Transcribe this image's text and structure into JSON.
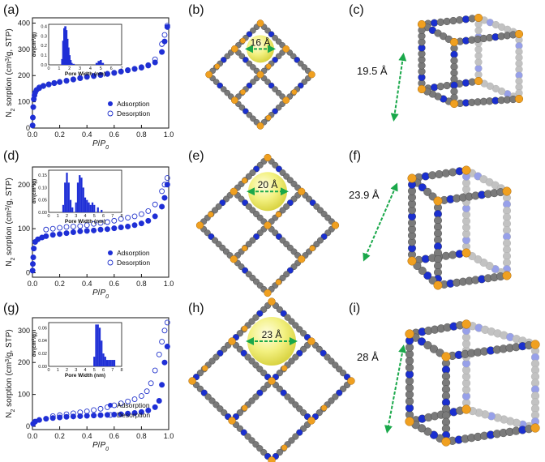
{
  "figure": {
    "panels": [
      {
        "letter": "(a)",
        "ylabel": "N2 sorption (cm3/g, STP)",
        "xlabel": "P/P0",
        "legend": [
          "Adsorption",
          "Desorption"
        ],
        "yticks": [
          "0",
          "100",
          "200",
          "300",
          "400"
        ],
        "xticks": [
          "0.0",
          "0.2",
          "0.4",
          "0.6",
          "0.8",
          "1.0"
        ],
        "inset": {
          "ylabel": "dV(cm3/g)",
          "xlabel": "Pore Width (nm)",
          "yticks": [
            "0.0",
            "0.1",
            "0.2",
            "0.3",
            "0.4"
          ],
          "xticks": [
            "0",
            "1",
            "2",
            "3",
            "4",
            "5",
            "6",
            "7"
          ]
        }
      },
      {
        "letter": "(b)",
        "pore": "16 Å"
      },
      {
        "letter": "(c)",
        "cage": "19.5 Å"
      },
      {
        "letter": "(d)",
        "ylabel": "N2 sorption (cm3/g, STP)",
        "xlabel": "P/P0",
        "legend": [
          "Adsorption",
          "Desorption"
        ],
        "yticks": [
          "0",
          "100",
          "200"
        ],
        "xticks": [
          "0.0",
          "0.2",
          "0.4",
          "0.6",
          "0.8",
          "1.0"
        ],
        "inset": {
          "ylabel": "dV(cm3/g)",
          "xlabel": "Pore Width (nm)",
          "yticks": [
            "0.00",
            "0.05",
            "0.10",
            "0.15"
          ],
          "xticks": [
            "0",
            "1",
            "2",
            "3",
            "4",
            "5",
            "6",
            "7",
            "8"
          ]
        }
      },
      {
        "letter": "(e)",
        "pore": "20 Å"
      },
      {
        "letter": "(f)",
        "cage": "23.9 Å"
      },
      {
        "letter": "(g)",
        "ylabel": "N2 sorption (cm3/g, STP)",
        "xlabel": "P/P0",
        "legend": [
          "Adsorption",
          "Desorption"
        ],
        "yticks": [
          "0",
          "100",
          "200",
          "300"
        ],
        "xticks": [
          "0.0",
          "0.2",
          "0.4",
          "0.6",
          "0.8",
          "1.0"
        ],
        "inset": {
          "ylabel": "dV(cm3/g)",
          "xlabel": "Pore Width (nm)",
          "yticks": [
            "0.00",
            "0.02",
            "0.04",
            "0.06"
          ],
          "xticks": [
            "0",
            "1",
            "2",
            "3",
            "4",
            "5",
            "6",
            "7",
            "8"
          ]
        }
      },
      {
        "letter": "(h)",
        "pore": "23 Å"
      },
      {
        "letter": "(i)",
        "cage": "28 Å"
      }
    ],
    "colors": {
      "adsorption": "#1f2fd6",
      "desorption": "#2233cc",
      "carbon": "#7a7a7a",
      "nitrogen": "#1a2fd0",
      "metal": "#f0a020",
      "pore_sphere": "#f2f07a",
      "arrow": "#1aa84a"
    }
  },
  "chart_data": [
    {
      "type": "scatter",
      "panel": "(a)",
      "xlabel": "P/P0",
      "ylabel": "N2 sorption (cm3/g, STP)",
      "xlim": [
        0,
        1.0
      ],
      "ylim": [
        0,
        420
      ],
      "series": [
        {
          "name": "Adsorption",
          "x": [
            0.001,
            0.003,
            0.006,
            0.01,
            0.015,
            0.02,
            0.03,
            0.05,
            0.08,
            0.12,
            0.16,
            0.2,
            0.25,
            0.3,
            0.35,
            0.4,
            0.45,
            0.5,
            0.55,
            0.6,
            0.65,
            0.7,
            0.75,
            0.8,
            0.85,
            0.9,
            0.95,
            0.97,
            0.99
          ],
          "y": [
            10,
            40,
            80,
            110,
            125,
            135,
            145,
            152,
            160,
            166,
            171,
            175,
            180,
            185,
            190,
            195,
            198,
            202,
            206,
            210,
            215,
            220,
            225,
            230,
            238,
            250,
            290,
            330,
            385
          ]
        },
        {
          "name": "Desorption",
          "x": [
            0.99,
            0.97,
            0.95,
            0.9,
            0.85,
            0.8,
            0.75,
            0.7,
            0.65,
            0.6,
            0.55,
            0.5,
            0.45,
            0.4,
            0.35,
            0.3,
            0.25,
            0.2,
            0.16,
            0.12,
            0.08,
            0.05
          ],
          "y": [
            390,
            355,
            320,
            262,
            240,
            232,
            226,
            221,
            216,
            211,
            207,
            203,
            199,
            196,
            191,
            186,
            181,
            176,
            172,
            167,
            161,
            155
          ]
        }
      ],
      "inset": {
        "type": "bar",
        "xlabel": "Pore Width (nm)",
        "ylabel": "dV(cm3/g)",
        "xlim": [
          0,
          7
        ],
        "ylim": [
          0,
          0.42
        ],
        "x": [
          1.3,
          1.4,
          1.5,
          1.6,
          1.7,
          1.8,
          1.9,
          2.0,
          2.1,
          2.2,
          2.4,
          4.6,
          4.8,
          5.0,
          5.2
        ],
        "values": [
          0.06,
          0.25,
          0.38,
          0.4,
          0.36,
          0.27,
          0.18,
          0.1,
          0.05,
          0.02,
          0.01,
          0.02,
          0.04,
          0.05,
          0.02
        ]
      }
    },
    {
      "type": "scatter",
      "panel": "(d)",
      "xlabel": "P/P0",
      "ylabel": "N2 sorption (cm3/g, STP)",
      "xlim": [
        0,
        1.0
      ],
      "ylim": [
        -10,
        240
      ],
      "series": [
        {
          "name": "Adsorption",
          "x": [
            0.001,
            0.003,
            0.006,
            0.01,
            0.02,
            0.04,
            0.07,
            0.1,
            0.15,
            0.2,
            0.25,
            0.3,
            0.35,
            0.4,
            0.45,
            0.5,
            0.55,
            0.6,
            0.65,
            0.7,
            0.75,
            0.8,
            0.85,
            0.9,
            0.95,
            0.97,
            0.99
          ],
          "y": [
            5,
            20,
            35,
            55,
            70,
            76,
            80,
            83,
            86,
            88,
            90,
            92,
            94,
            95,
            96,
            98,
            99,
            101,
            103,
            105,
            108,
            112,
            118,
            128,
            150,
            170,
            200
          ]
        },
        {
          "name": "Desorption",
          "x": [
            0.99,
            0.97,
            0.95,
            0.9,
            0.85,
            0.8,
            0.75,
            0.7,
            0.65,
            0.6,
            0.55,
            0.5,
            0.45,
            0.4,
            0.35,
            0.3,
            0.25,
            0.2,
            0.15,
            0.1
          ],
          "y": [
            215,
            200,
            185,
            155,
            140,
            133,
            128,
            125,
            122,
            118,
            115,
            113,
            111,
            108,
            106,
            105,
            104,
            102,
            100,
            98
          ]
        }
      ],
      "inset": {
        "type": "bar",
        "xlabel": "Pore Width (nm)",
        "ylabel": "dV(cm3/g)",
        "xlim": [
          0,
          8
        ],
        "ylim": [
          0,
          0.17
        ],
        "x": [
          1.6,
          1.8,
          2.0,
          2.2,
          2.4,
          2.6,
          3.0,
          3.2,
          3.4,
          3.6,
          3.8,
          4.0,
          4.2,
          4.4,
          4.6,
          4.8,
          5.0,
          5.4,
          5.8
        ],
        "values": [
          0.03,
          0.12,
          0.16,
          0.12,
          0.05,
          0.02,
          0.04,
          0.12,
          0.15,
          0.14,
          0.1,
          0.06,
          0.05,
          0.04,
          0.03,
          0.04,
          0.03,
          0.02,
          0.01
        ]
      }
    },
    {
      "type": "scatter",
      "panel": "(g)",
      "xlabel": "P/P0",
      "ylabel": "N2 sorption (cm3/g, STP)",
      "xlim": [
        0,
        1.0
      ],
      "ylim": [
        -10,
        340
      ],
      "series": [
        {
          "name": "Adsorption",
          "x": [
            0.005,
            0.02,
            0.05,
            0.1,
            0.15,
            0.2,
            0.25,
            0.3,
            0.35,
            0.4,
            0.45,
            0.5,
            0.55,
            0.6,
            0.65,
            0.7,
            0.75,
            0.8,
            0.85,
            0.9,
            0.93,
            0.95,
            0.97,
            0.99
          ],
          "y": [
            8,
            15,
            20,
            24,
            26,
            28,
            30,
            31,
            32,
            33,
            34,
            35,
            36,
            37,
            38,
            40,
            42,
            45,
            50,
            60,
            80,
            130,
            200,
            250
          ]
        },
        {
          "name": "Desorption",
          "x": [
            0.99,
            0.97,
            0.95,
            0.93,
            0.9,
            0.87,
            0.84,
            0.8,
            0.75,
            0.7,
            0.65,
            0.6,
            0.55,
            0.5,
            0.45,
            0.4,
            0.35,
            0.3,
            0.25,
            0.2,
            0.15
          ],
          "y": [
            325,
            300,
            265,
            225,
            175,
            135,
            110,
            95,
            85,
            78,
            72,
            66,
            60,
            55,
            51,
            47,
            44,
            41,
            38,
            35,
            32
          ]
        }
      ],
      "inset": {
        "type": "bar",
        "xlabel": "Pore Width (nm)",
        "ylabel": "dV(cm3/g)",
        "xlim": [
          0,
          8
        ],
        "ylim": [
          0,
          0.068
        ],
        "x": [
          5.0,
          5.2,
          5.4,
          5.6,
          5.8,
          6.0,
          6.2,
          6.4,
          6.6,
          6.8,
          7.0,
          7.2
        ],
        "values": [
          0.015,
          0.065,
          0.065,
          0.06,
          0.04,
          0.02,
          0.015,
          0.01,
          0.01,
          0.01,
          0.01,
          0.01
        ]
      }
    }
  ]
}
